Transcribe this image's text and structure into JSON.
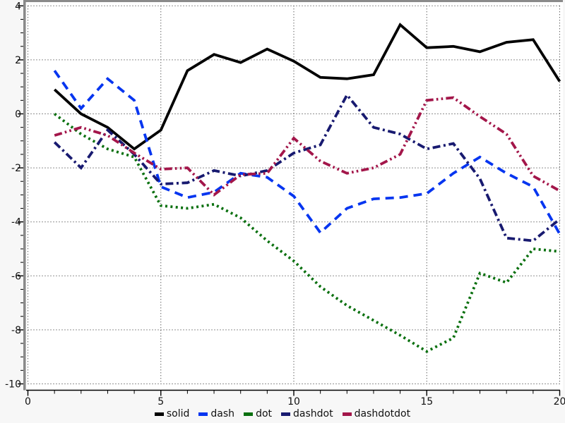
{
  "chart_data": {
    "type": "line",
    "title": "",
    "xlabel": "",
    "ylabel": "",
    "xlim": [
      0,
      20
    ],
    "ylim": [
      -10,
      4
    ],
    "grid": true,
    "grid_style": "dotted",
    "legend_position": "bottom-center",
    "x": [
      1,
      2,
      3,
      4,
      5,
      6,
      7,
      8,
      9,
      10,
      11,
      12,
      13,
      14,
      15,
      16,
      17,
      18,
      19,
      20
    ],
    "x_major_ticks": [
      0,
      5,
      10,
      15,
      20
    ],
    "y_major_ticks": [
      4,
      2,
      0,
      -2,
      -4,
      -6,
      -8,
      -10
    ],
    "x_tick_labels": [
      "0",
      "5",
      "10",
      "15",
      "20"
    ],
    "y_tick_labels": [
      "4",
      "2",
      "0",
      "-2",
      "-4",
      "-6",
      "-8",
      "-10"
    ],
    "series": [
      {
        "name": "solid",
        "color": "#000000",
        "line_style": "solid",
        "values": [
          0.9,
          0.0,
          -0.5,
          -1.3,
          -0.6,
          1.6,
          2.2,
          1.9,
          2.4,
          1.95,
          1.35,
          1.3,
          1.45,
          3.3,
          2.45,
          2.5,
          2.3,
          2.65,
          2.75,
          1.2
        ]
      },
      {
        "name": "dash",
        "color": "#0535f0",
        "line_style": "dash",
        "values": [
          1.6,
          0.2,
          1.3,
          0.5,
          -2.7,
          -3.1,
          -2.9,
          -2.2,
          -2.35,
          -3.05,
          -4.4,
          -3.5,
          -3.15,
          -3.1,
          -2.95,
          -2.2,
          -1.6,
          -2.2,
          -2.7,
          -4.45
        ]
      },
      {
        "name": "dot",
        "color": "#0a700f",
        "line_style": "dot",
        "values": [
          0.0,
          -0.75,
          -1.3,
          -1.6,
          -3.4,
          -3.5,
          -3.35,
          -3.85,
          -4.7,
          -5.45,
          -6.4,
          -7.1,
          -7.65,
          -8.2,
          -8.8,
          -8.3,
          -5.9,
          -6.25,
          -5.0,
          -5.1
        ]
      },
      {
        "name": "dashdot",
        "color": "#181a70",
        "line_style": "dashdot",
        "values": [
          -1.05,
          -2.0,
          -0.6,
          -1.5,
          -2.6,
          -2.55,
          -2.1,
          -2.3,
          -2.1,
          -1.45,
          -1.15,
          0.7,
          -0.5,
          -0.75,
          -1.3,
          -1.1,
          -2.4,
          -4.6,
          -4.7,
          -3.9
        ]
      },
      {
        "name": "dashdotdot",
        "color": "#a3164a",
        "line_style": "dashdotdot",
        "values": [
          -0.8,
          -0.5,
          -0.8,
          -1.45,
          -2.05,
          -2.0,
          -3.0,
          -2.25,
          -2.2,
          -0.9,
          -1.75,
          -2.2,
          -2.0,
          -1.5,
          0.5,
          0.6,
          -0.1,
          -0.75,
          -2.3,
          -2.85
        ]
      }
    ]
  },
  "colors": {
    "page_background": "#f7f7f7",
    "plot_background": "#ffffff",
    "frame_gray": "#8a8a8a",
    "frame_gray_light": "#c9c9c9",
    "grid_dots": "#222222",
    "axis_line": "#000000",
    "tick_text": "#111111"
  }
}
